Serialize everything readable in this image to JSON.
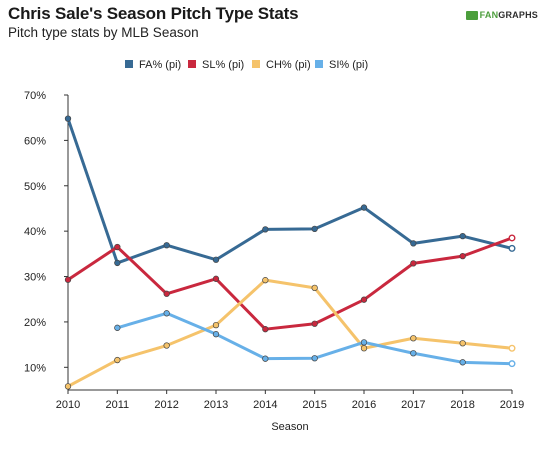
{
  "header": {
    "title": "Chris Sale's Season Pitch Type Stats",
    "subtitle": "Pitch type stats by MLB Season",
    "logo_text": "FANGRAPHS"
  },
  "chart_data": {
    "type": "line",
    "title": "Chris Sale's Season Pitch Type Stats",
    "subtitle": "Pitch type stats by MLB Season",
    "xlabel": "Season",
    "ylabel": "",
    "x": [
      2010,
      2011,
      2012,
      2013,
      2014,
      2015,
      2016,
      2017,
      2018,
      2019
    ],
    "ylim": [
      0.05,
      0.7
    ],
    "yticks": [
      "10%",
      "20%",
      "30%",
      "40%",
      "50%",
      "60%",
      "70%"
    ],
    "ytick_values": [
      0.1,
      0.2,
      0.3,
      0.4,
      0.5,
      0.6,
      0.7
    ],
    "grid": false,
    "legend_position": "top",
    "series": [
      {
        "name": "FA% (pi)",
        "color": "#376a94",
        "values": [
          0.648,
          0.33,
          0.369,
          0.337,
          0.404,
          0.405,
          0.452,
          0.373,
          0.389,
          0.362
        ]
      },
      {
        "name": "SL% (pi)",
        "color": "#c9283e",
        "values": [
          0.293,
          0.365,
          0.262,
          0.295,
          0.184,
          0.196,
          0.249,
          0.329,
          0.345,
          0.385
        ]
      },
      {
        "name": "CH% (pi)",
        "color": "#f5c36b",
        "values": [
          0.058,
          0.116,
          0.148,
          0.193,
          0.292,
          0.275,
          0.142,
          0.164,
          0.153,
          0.142
        ]
      },
      {
        "name": "SI% (pi)",
        "color": "#67b0e8",
        "values": [
          null,
          0.187,
          0.219,
          0.173,
          0.119,
          0.12,
          0.155,
          0.131,
          0.111,
          0.108
        ]
      }
    ]
  }
}
